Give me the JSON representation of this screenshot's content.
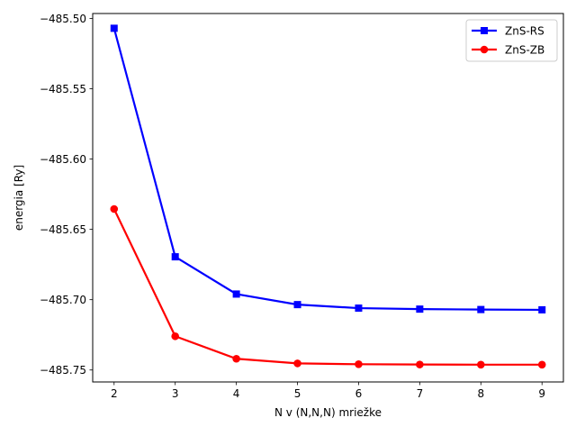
{
  "chart_data": {
    "type": "line",
    "title": "",
    "xlabel": "N v (N,N,N) mriežke",
    "ylabel": "energia [Ry]",
    "x": [
      2,
      3,
      4,
      5,
      6,
      7,
      8,
      9
    ],
    "xlim": [
      1.65,
      9.35
    ],
    "ylim": [
      -485.7585,
      -485.4965
    ],
    "xticks": [
      2,
      3,
      4,
      5,
      6,
      7,
      8,
      9
    ],
    "yticks": [
      -485.5,
      -485.55,
      -485.6,
      -485.65,
      -485.7,
      -485.75
    ],
    "ytick_labels": [
      "−485.50",
      "−485.55",
      "−485.60",
      "−485.65",
      "−485.70",
      "−485.75"
    ],
    "grid": false,
    "legend_position": "upper right",
    "series": [
      {
        "name": "ZnS-RS",
        "color": "#0000ff",
        "marker": "square",
        "values": [
          -485.507,
          -485.6695,
          -485.696,
          -485.7035,
          -485.706,
          -485.7067,
          -485.707,
          -485.7072
        ]
      },
      {
        "name": "ZnS-ZB",
        "color": "#ff0000",
        "marker": "circle",
        "values": [
          -485.6355,
          -485.726,
          -485.742,
          -485.7453,
          -485.7459,
          -485.7461,
          -485.7462,
          -485.7462
        ]
      }
    ]
  }
}
